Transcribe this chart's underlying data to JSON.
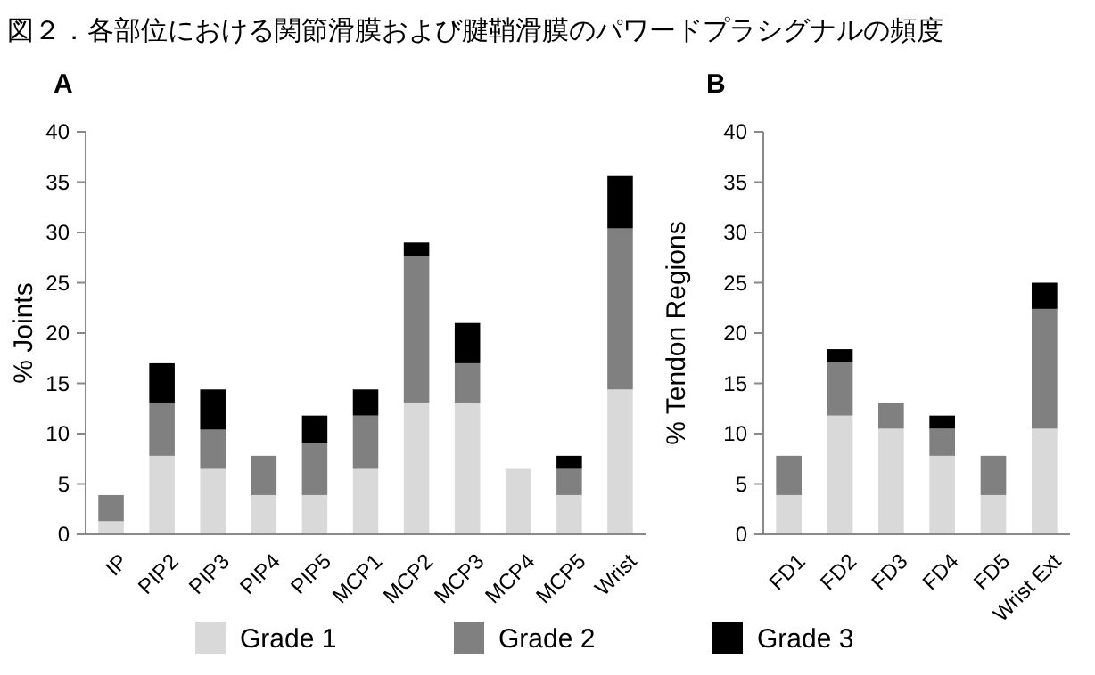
{
  "chart_data": [
    {
      "type": "bar",
      "title": "図２．各部位における関節滑膜および腱鞘滑膜のパワードプラシグナルの頻度",
      "subtitle": "A",
      "ylabel": "% Joints",
      "stacked": true,
      "categories": [
        "IP",
        "PIP2",
        "PIP3",
        "PIP4",
        "PIP5",
        "MCP1",
        "MCP2",
        "MCP3",
        "MCP4",
        "MCP5",
        "Wrist"
      ],
      "ylim": [
        0,
        40
      ],
      "yticks": [
        0,
        5,
        10,
        15,
        20,
        25,
        30,
        35,
        40
      ],
      "grid": false,
      "legend": "bottom",
      "series": [
        {
          "name": "Grade 1",
          "color": "#d9d9d9",
          "values": [
            1.3,
            7.8,
            6.5,
            3.9,
            3.9,
            6.5,
            13.1,
            13.1,
            6.5,
            3.9,
            14.4
          ]
        },
        {
          "name": "Grade 2",
          "color": "#808080",
          "values": [
            2.6,
            5.3,
            3.9,
            3.9,
            5.2,
            5.3,
            14.6,
            3.9,
            0,
            2.6,
            16.0
          ]
        },
        {
          "name": "Grade 3",
          "color": "#000000",
          "values": [
            0,
            3.9,
            4.0,
            0,
            2.7,
            2.6,
            1.3,
            4.0,
            0,
            1.3,
            5.2
          ]
        }
      ]
    },
    {
      "type": "bar",
      "subtitle": "B",
      "ylabel": "% Tendon Regions",
      "stacked": true,
      "categories": [
        "FD1",
        "FD2",
        "FD3",
        "FD4",
        "FD5",
        "Wrist Ext"
      ],
      "ylim": [
        0,
        40
      ],
      "yticks": [
        0,
        5,
        10,
        15,
        20,
        25,
        30,
        35,
        40
      ],
      "grid": false,
      "series": [
        {
          "color": "#d9d9d9",
          "values": [
            3.9,
            11.8,
            10.5,
            7.8,
            3.9,
            10.5
          ]
        },
        {
          "color": "#808080",
          "values": [
            3.9,
            5.3,
            2.6,
            2.7,
            3.9,
            11.9
          ]
        },
        {
          "color": "#000000",
          "values": [
            0,
            1.3,
            0,
            1.3,
            0,
            2.6
          ]
        }
      ]
    }
  ]
}
